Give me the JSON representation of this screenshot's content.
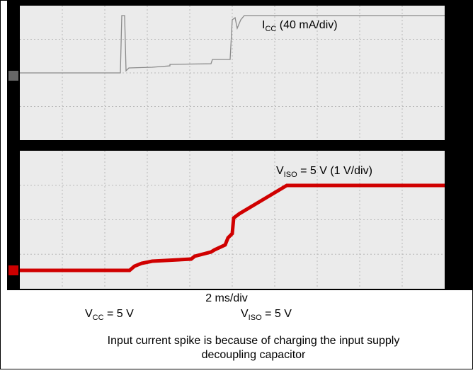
{
  "top_label": {
    "main": "I",
    "sub": "CC",
    "rest": " (40 mA/div)"
  },
  "bottom_label": {
    "main": "V",
    "sub": "ISO",
    "rest": " = 5 V (1 V/div)"
  },
  "timebase": "2 ms/div",
  "conditions": [
    {
      "main": "V",
      "sub": "CC",
      "rest": " = 5 V"
    },
    {
      "main": "V",
      "sub": "ISO",
      "rest": " = 5 V"
    }
  ],
  "caption": [
    "Input current spike is because of charging the input supply",
    "decoupling capacitor"
  ]
}
